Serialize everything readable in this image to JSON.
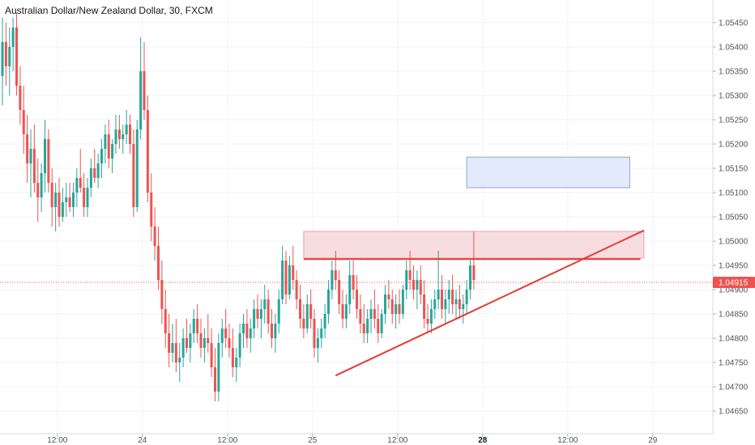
{
  "chart_data": {
    "type": "candlestick",
    "title": "Australian Dollar/New Zealand Dollar, 30, FXCM",
    "ylim": [
      1.0463,
      1.0548
    ],
    "y_ticks": [
      "1.05450",
      "1.05400",
      "1.05350",
      "1.05300",
      "1.05250",
      "1.05200",
      "1.05150",
      "1.05100",
      "1.05050",
      "1.05000",
      "1.04950",
      "1.04900",
      "1.04850",
      "1.04800",
      "1.04750",
      "1.04700",
      "1.04650"
    ],
    "x_ticks": [
      {
        "label": "12:00",
        "bar": 15.5,
        "bold": false
      },
      {
        "label": "24",
        "bar": 39.5,
        "bold": false
      },
      {
        "label": "12:00",
        "bar": 63.5,
        "bold": false
      },
      {
        "label": "25",
        "bar": 87.5,
        "bold": false
      },
      {
        "label": "12:00",
        "bar": 111.5,
        "bold": false
      },
      {
        "label": "28",
        "bar": 135.5,
        "bold": true
      },
      {
        "label": "12:00",
        "bar": 159.5,
        "bold": false
      },
      {
        "label": "29",
        "bar": 183.5,
        "bold": false
      }
    ],
    "last_price": "1.04915",
    "last_price_value": 1.04915,
    "colors": {
      "up": "#26a69a",
      "down": "#ef5350",
      "last_price_line": "#ef5350",
      "badge": "#ef5350"
    },
    "candles": [
      [
        1.0534,
        1.0546,
        1.0528,
        1.0541
      ],
      [
        1.0541,
        1.0545,
        1.0532,
        1.0536
      ],
      [
        1.0536,
        1.0544,
        1.053,
        1.054
      ],
      [
        1.054,
        1.0546,
        1.0535,
        1.0544
      ],
      [
        1.0544,
        1.0547,
        1.053,
        1.0532
      ],
      [
        1.0532,
        1.0536,
        1.0524,
        1.0527
      ],
      [
        1.0527,
        1.0532,
        1.0518,
        1.0522
      ],
      [
        1.0522,
        1.0526,
        1.0512,
        1.0516
      ],
      [
        1.0516,
        1.0523,
        1.0509,
        1.0519
      ],
      [
        1.0519,
        1.0524,
        1.051,
        1.0512
      ],
      [
        1.0512,
        1.0517,
        1.0504,
        1.0509
      ],
      [
        1.0509,
        1.0516,
        1.0506,
        1.0514
      ],
      [
        1.0514,
        1.0525,
        1.051,
        1.0521
      ],
      [
        1.0521,
        1.0523,
        1.051,
        1.0512
      ],
      [
        1.0512,
        1.0515,
        1.0503,
        1.0507
      ],
      [
        1.0507,
        1.0512,
        1.0502,
        1.051
      ],
      [
        1.051,
        1.0513,
        1.0503,
        1.0505
      ],
      [
        1.0505,
        1.0511,
        1.0504,
        1.0508
      ],
      [
        1.0508,
        1.0512,
        1.0505,
        1.0509
      ],
      [
        1.0509,
        1.0512,
        1.0506,
        1.0507
      ],
      [
        1.0507,
        1.0512,
        1.0505,
        1.051
      ],
      [
        1.051,
        1.0515,
        1.0507,
        1.0513
      ],
      [
        1.0513,
        1.0519,
        1.051,
        1.0511
      ],
      [
        1.0511,
        1.0514,
        1.0505,
        1.0507
      ],
      [
        1.0507,
        1.0513,
        1.0505,
        1.0511
      ],
      [
        1.0511,
        1.0517,
        1.0509,
        1.0515
      ],
      [
        1.0515,
        1.0519,
        1.0512,
        1.0513
      ],
      [
        1.0513,
        1.0518,
        1.0511,
        1.0516
      ],
      [
        1.0516,
        1.0521,
        1.0513,
        1.0519
      ],
      [
        1.0519,
        1.0524,
        1.0516,
        1.0522
      ],
      [
        1.0522,
        1.0525,
        1.0515,
        1.0517
      ],
      [
        1.0517,
        1.0521,
        1.0514,
        1.052
      ],
      [
        1.052,
        1.0526,
        1.0518,
        1.0523
      ],
      [
        1.0523,
        1.0526,
        1.0519,
        1.0521
      ],
      [
        1.0521,
        1.0524,
        1.0518,
        1.0522
      ],
      [
        1.0522,
        1.0527,
        1.052,
        1.0524
      ],
      [
        1.0524,
        1.0526,
        1.0518,
        1.052
      ],
      [
        1.052,
        1.0523,
        1.0505,
        1.0507
      ],
      [
        1.0507,
        1.0525,
        1.0506,
        1.0523
      ],
      [
        1.0523,
        1.0542,
        1.0521,
        1.0535
      ],
      [
        1.0535,
        1.0541,
        1.0525,
        1.0527
      ],
      [
        1.0527,
        1.053,
        1.0508,
        1.051
      ],
      [
        1.051,
        1.0514,
        1.05,
        1.0503
      ],
      [
        1.0503,
        1.0507,
        1.0496,
        1.0499
      ],
      [
        1.0499,
        1.0503,
        1.049,
        1.0492
      ],
      [
        1.0492,
        1.0496,
        1.0483,
        1.0486
      ],
      [
        1.0486,
        1.049,
        1.0478,
        1.0481
      ],
      [
        1.0481,
        1.0485,
        1.0474,
        1.0477
      ],
      [
        1.0477,
        1.0483,
        1.0475,
        1.0479
      ],
      [
        1.0479,
        1.0484,
        1.0473,
        1.0475
      ],
      [
        1.0475,
        1.0479,
        1.0471,
        1.0476
      ],
      [
        1.0476,
        1.0482,
        1.0474,
        1.048
      ],
      [
        1.048,
        1.0484,
        1.0477,
        1.0478
      ],
      [
        1.0478,
        1.0483,
        1.0475,
        1.0481
      ],
      [
        1.0481,
        1.0486,
        1.0479,
        1.0484
      ],
      [
        1.0484,
        1.0487,
        1.0479,
        1.0481
      ],
      [
        1.0481,
        1.0484,
        1.0476,
        1.0478
      ],
      [
        1.0478,
        1.0482,
        1.0475,
        1.048
      ],
      [
        1.048,
        1.0485,
        1.0477,
        1.0479
      ],
      [
        1.0479,
        1.0482,
        1.0472,
        1.0474
      ],
      [
        1.0474,
        1.0478,
        1.0467,
        1.0469
      ],
      [
        1.0469,
        1.0481,
        1.0467,
        1.0479
      ],
      [
        1.0479,
        1.0484,
        1.0476,
        1.0482
      ],
      [
        1.0482,
        1.0486,
        1.0478,
        1.048
      ],
      [
        1.048,
        1.0483,
        1.0476,
        1.0478
      ],
      [
        1.0478,
        1.0482,
        1.0472,
        1.0474
      ],
      [
        1.0474,
        1.0478,
        1.0471,
        1.0476
      ],
      [
        1.0476,
        1.0483,
        1.0474,
        1.0481
      ],
      [
        1.0481,
        1.0485,
        1.0478,
        1.0483
      ],
      [
        1.0483,
        1.0486,
        1.0478,
        1.048
      ],
      [
        1.048,
        1.0484,
        1.0477,
        1.0482
      ],
      [
        1.0482,
        1.0488,
        1.048,
        1.0486
      ],
      [
        1.0486,
        1.0489,
        1.0482,
        1.0484
      ],
      [
        1.0484,
        1.0488,
        1.048,
        1.0486
      ],
      [
        1.0486,
        1.0491,
        1.0483,
        1.0488
      ],
      [
        1.0488,
        1.049,
        1.0481,
        1.0483
      ],
      [
        1.0483,
        1.0486,
        1.0478,
        1.048
      ],
      [
        1.048,
        1.0485,
        1.0477,
        1.0483
      ],
      [
        1.0483,
        1.049,
        1.0481,
        1.0488
      ],
      [
        1.0488,
        1.0499,
        1.0487,
        1.0496
      ],
      [
        1.0496,
        1.0498,
        1.0487,
        1.0489
      ],
      [
        1.0489,
        1.0497,
        1.0488,
        1.0495
      ],
      [
        1.0495,
        1.0499,
        1.049,
        1.0492
      ],
      [
        1.0492,
        1.0494,
        1.0486,
        1.0488
      ],
      [
        1.0488,
        1.0491,
        1.0482,
        1.0484
      ],
      [
        1.0484,
        1.0487,
        1.048,
        1.0482
      ],
      [
        1.0482,
        1.0489,
        1.0481,
        1.0487
      ],
      [
        1.0487,
        1.049,
        1.0482,
        1.0484
      ],
      [
        1.0484,
        1.0486,
        1.0476,
        1.0478
      ],
      [
        1.0478,
        1.0482,
        1.0475,
        1.048
      ],
      [
        1.048,
        1.0484,
        1.0478,
        1.0482
      ],
      [
        1.0482,
        1.0487,
        1.048,
        1.0485
      ],
      [
        1.0485,
        1.0492,
        1.0483,
        1.049
      ],
      [
        1.049,
        1.0496,
        1.0488,
        1.0494
      ],
      [
        1.0494,
        1.0498,
        1.049,
        1.0492
      ],
      [
        1.0492,
        1.0494,
        1.0485,
        1.0487
      ],
      [
        1.0487,
        1.049,
        1.0482,
        1.0484
      ],
      [
        1.0484,
        1.0489,
        1.0482,
        1.0487
      ],
      [
        1.0487,
        1.0496,
        1.0485,
        1.0493
      ],
      [
        1.0493,
        1.0496,
        1.0488,
        1.049
      ],
      [
        1.049,
        1.0493,
        1.0484,
        1.0486
      ],
      [
        1.0486,
        1.0489,
        1.0481,
        1.0483
      ],
      [
        1.0483,
        1.0487,
        1.0479,
        1.0481
      ],
      [
        1.0481,
        1.0486,
        1.0479,
        1.0484
      ],
      [
        1.0484,
        1.0488,
        1.0481,
        1.0486
      ],
      [
        1.0486,
        1.049,
        1.0482,
        1.0484
      ],
      [
        1.0484,
        1.0487,
        1.0479,
        1.0481
      ],
      [
        1.0481,
        1.0486,
        1.048,
        1.0485
      ],
      [
        1.0485,
        1.0491,
        1.0483,
        1.0489
      ],
      [
        1.0489,
        1.0492,
        1.0486,
        1.0488
      ],
      [
        1.0488,
        1.049,
        1.0483,
        1.0485
      ],
      [
        1.0485,
        1.0489,
        1.0482,
        1.0487
      ],
      [
        1.0487,
        1.049,
        1.0483,
        1.0485
      ],
      [
        1.0485,
        1.0491,
        1.0484,
        1.049
      ],
      [
        1.049,
        1.0496,
        1.0488,
        1.0494
      ],
      [
        1.0494,
        1.0498,
        1.049,
        1.0492
      ],
      [
        1.0492,
        1.0495,
        1.0488,
        1.049
      ],
      [
        1.049,
        1.0494,
        1.0486,
        1.0492
      ],
      [
        1.0492,
        1.0495,
        1.0487,
        1.0489
      ],
      [
        1.0489,
        1.0492,
        1.0482,
        1.0484
      ],
      [
        1.0484,
        1.0487,
        1.0481,
        1.0483
      ],
      [
        1.0483,
        1.0488,
        1.0481,
        1.0486
      ],
      [
        1.0486,
        1.049,
        1.0484,
        1.0488
      ],
      [
        1.0488,
        1.0498,
        1.0486,
        1.049
      ],
      [
        1.049,
        1.0493,
        1.0484,
        1.0486
      ],
      [
        1.0486,
        1.049,
        1.0483,
        1.0488
      ],
      [
        1.0488,
        1.0492,
        1.0485,
        1.049
      ],
      [
        1.049,
        1.0493,
        1.0485,
        1.0487
      ],
      [
        1.0487,
        1.049,
        1.0484,
        1.0488
      ],
      [
        1.0488,
        1.0491,
        1.0484,
        1.0486
      ],
      [
        1.0486,
        1.0489,
        1.0483,
        1.0487
      ],
      [
        1.0487,
        1.0492,
        1.0485,
        1.049
      ],
      [
        1.049,
        1.0496,
        1.0488,
        1.0495
      ],
      [
        1.0495,
        1.0502,
        1.049,
        1.0492
      ]
    ],
    "drawings": {
      "resistance_zone": {
        "x_bar_start": 85,
        "x_bar_end": 181,
        "y_top": 1.0502,
        "y_bottom": 1.04965,
        "fill": "#f7dde0",
        "stroke": "#e8a3ab"
      },
      "resistance_line": {
        "x_bar_start": 85,
        "x_bar_end": 180,
        "y": 1.04963,
        "color": "#e53935"
      },
      "target_zone": {
        "x_bar_start": 131,
        "x_bar_end": 177,
        "y_top": 1.05173,
        "y_bottom": 1.0511,
        "fill": "#e2eafb",
        "stroke": "#8fa8cf"
      },
      "trend_line": {
        "x_bar_start": 94,
        "y_start": 1.04723,
        "x_bar_end": 181,
        "y_end": 1.05022,
        "color": "#e53935"
      }
    }
  }
}
